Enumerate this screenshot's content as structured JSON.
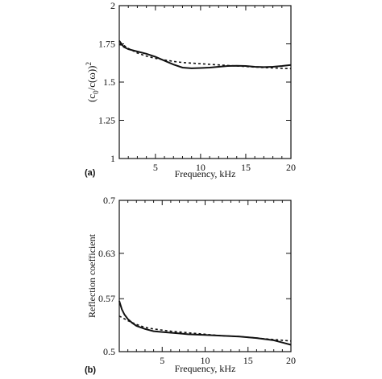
{
  "chart_data": [
    {
      "type": "line",
      "panel_label": "(a)",
      "xlabel": "Frequency, kHz",
      "ylabel": "(c0/c(ω))2",
      "xlim": [
        1,
        20
      ],
      "ylim": [
        1,
        2
      ],
      "x_ticks": [
        5,
        10,
        15,
        20
      ],
      "y_ticks": [
        1,
        1.25,
        1.5,
        1.75,
        2
      ],
      "x_tick_labels": [
        "5",
        "10",
        "15",
        "20"
      ],
      "y_tick_labels": [
        "1",
        "1.25",
        "1.5",
        "1.75",
        "2"
      ],
      "grid": false,
      "series": [
        {
          "style": "solid",
          "x": [
            1.0,
            1.5,
            2.0,
            3.0,
            4.0,
            5.0,
            6.0,
            7.0,
            8.0,
            9.0,
            10.0,
            11.0,
            12.0,
            13.0,
            14.0,
            15.0,
            16.0,
            17.0,
            18.0,
            19.0,
            20.0
          ],
          "y": [
            1.77,
            1.73,
            1.715,
            1.7,
            1.685,
            1.665,
            1.64,
            1.615,
            1.595,
            1.59,
            1.592,
            1.595,
            1.6,
            1.605,
            1.607,
            1.605,
            1.6,
            1.598,
            1.6,
            1.605,
            1.612
          ]
        },
        {
          "style": "dashed",
          "x": [
            1.0,
            1.5,
            2.0,
            3.0,
            4.0,
            5.0,
            6.0,
            7.0,
            8.0,
            10.0,
            12.0,
            14.0,
            16.0,
            18.0,
            20.0
          ],
          "y": [
            1.745,
            1.74,
            1.72,
            1.69,
            1.67,
            1.655,
            1.645,
            1.635,
            1.628,
            1.62,
            1.612,
            1.605,
            1.598,
            1.592,
            1.588
          ]
        }
      ]
    },
    {
      "type": "line",
      "panel_label": "(b)",
      "xlabel": "Frequency, kHz",
      "ylabel": "Reflection coefficient",
      "xlim": [
        0,
        20
      ],
      "ylim": [
        0.5,
        0.7
      ],
      "x_ticks": [
        5,
        10,
        15,
        20
      ],
      "y_ticks": [
        0.5,
        0.57,
        0.63,
        0.7
      ],
      "x_tick_labels": [
        "5",
        "10",
        "15",
        "20"
      ],
      "y_tick_labels": [
        "0.5",
        "0.57",
        "0.63",
        "0.7"
      ],
      "grid": false,
      "series": [
        {
          "style": "solid",
          "x": [
            0.0,
            0.3,
            0.6,
            1.0,
            1.5,
            2.0,
            3.0,
            4.0,
            5.0,
            6.0,
            7.0,
            8.0,
            10.0,
            12.0,
            14.0,
            16.0,
            18.0,
            19.0,
            20.0
          ],
          "y": [
            0.567,
            0.556,
            0.549,
            0.543,
            0.538,
            0.534,
            0.53,
            0.527,
            0.526,
            0.525,
            0.524,
            0.523,
            0.522,
            0.521,
            0.52,
            0.518,
            0.515,
            0.512,
            0.509
          ]
        },
        {
          "style": "dashed",
          "x": [
            0.0,
            1.0,
            2.0,
            3.0,
            4.0,
            6.0,
            8.0,
            10.0,
            12.0,
            14.0,
            16.0,
            18.0,
            20.0
          ],
          "y": [
            0.547,
            0.541,
            0.536,
            0.532,
            0.53,
            0.527,
            0.525,
            0.523,
            0.521,
            0.52,
            0.518,
            0.516,
            0.514
          ]
        }
      ]
    }
  ]
}
